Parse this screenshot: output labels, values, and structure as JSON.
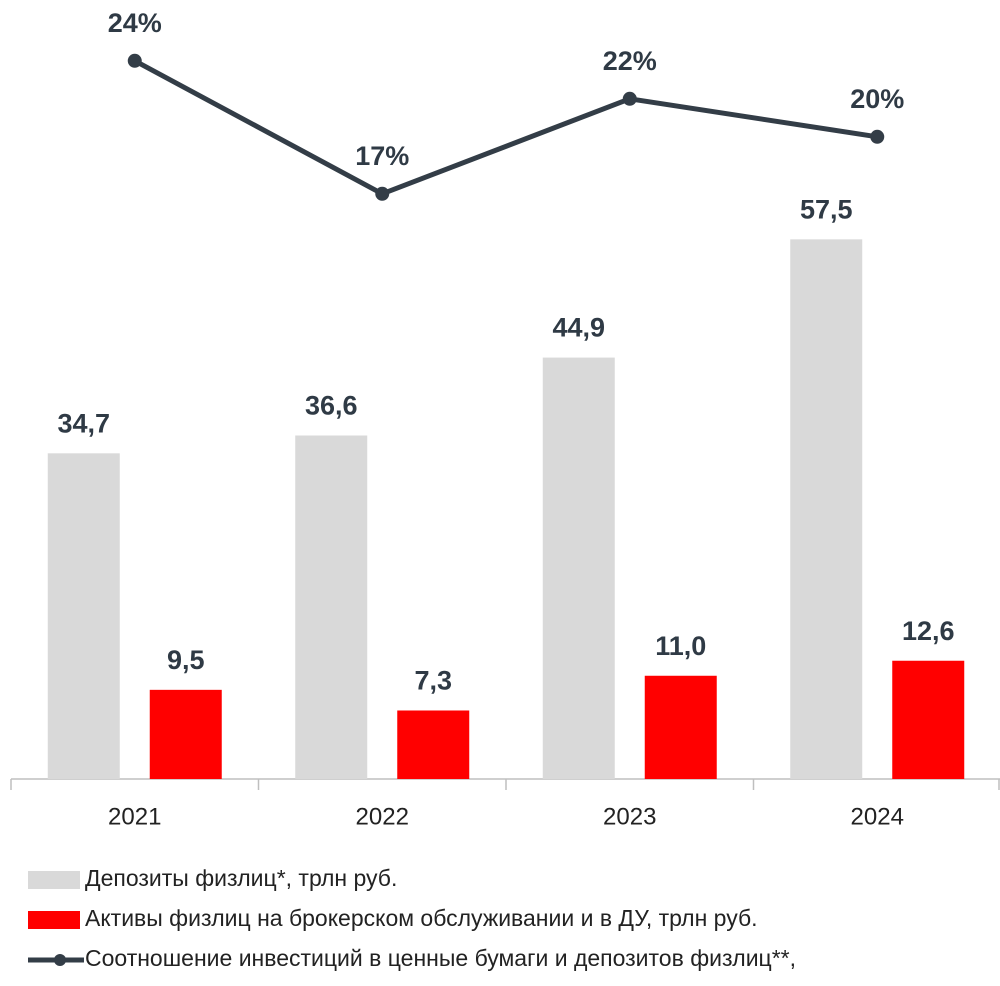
{
  "chart_data": {
    "type": "bar",
    "categories": [
      "2021",
      "2022",
      "2023",
      "2024"
    ],
    "series": [
      {
        "name": "Депозиты физлиц*, трлн руб.",
        "color": "#d9d9d9",
        "values": [
          34.7,
          36.6,
          44.9,
          57.5
        ],
        "value_labels": [
          "34,7",
          "36,6",
          "44,9",
          "57,5"
        ]
      },
      {
        "name": "Активы физлиц на брокерском обслуживании и в ДУ, трлн руб.",
        "color": "#ff0000",
        "values": [
          9.5,
          7.3,
          11.0,
          12.6
        ],
        "value_labels": [
          "9,5",
          "7,3",
          "11,0",
          "12,6"
        ]
      },
      {
        "name": "Соотношение инвестиций в ценные бумаги и депозитов физлиц**,",
        "color": "#333d47",
        "type": "line",
        "axis": "y2",
        "values": [
          24,
          17,
          22,
          20
        ],
        "value_labels": [
          "24%",
          "17%",
          "22%",
          "20%"
        ]
      }
    ],
    "ylim": [
      0,
      83
    ],
    "y2lim": [
      -13.8,
      27.2
    ]
  }
}
